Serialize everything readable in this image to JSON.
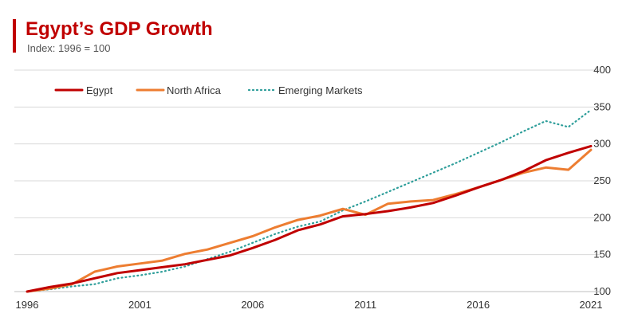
{
  "chart_data": {
    "type": "line",
    "title": "Egypt’s GDP Growth",
    "subtitle": "Index: 1996 = 100",
    "xlabel": "",
    "ylabel": "",
    "x": [
      1996,
      1997,
      1998,
      1999,
      2000,
      2001,
      2002,
      2003,
      2004,
      2005,
      2006,
      2007,
      2008,
      2009,
      2010,
      2011,
      2012,
      2013,
      2014,
      2015,
      2016,
      2017,
      2018,
      2019,
      2020,
      2021
    ],
    "xlim": [
      1996,
      2021
    ],
    "x_ticks": [
      1996,
      2001,
      2006,
      2011,
      2016,
      2021
    ],
    "ylim": [
      100,
      400
    ],
    "y_ticks": [
      100,
      150,
      200,
      250,
      300,
      350,
      400
    ],
    "y_axis_position": "right",
    "grid": "horizontal",
    "legend_position": "top-left",
    "series": [
      {
        "name": "Egypt",
        "color": "#c00000",
        "style": "solid",
        "values": [
          100,
          106,
          111,
          118,
          125,
          129,
          133,
          137,
          143,
          149,
          159,
          170,
          183,
          191,
          202,
          205,
          209,
          214,
          220,
          230,
          241,
          251,
          263,
          278,
          288,
          297
        ]
      },
      {
        "name": "North Africa",
        "color": "#ed7d31",
        "style": "solid",
        "values": [
          100,
          104,
          110,
          127,
          134,
          138,
          142,
          151,
          157,
          166,
          175,
          187,
          197,
          203,
          212,
          204,
          219,
          222,
          224,
          232,
          241,
          251,
          261,
          268,
          265,
          292
        ]
      },
      {
        "name": "Emerging Markets",
        "color": "#2e9e9a",
        "style": "dotted",
        "values": [
          100,
          103,
          107,
          110,
          118,
          122,
          127,
          134,
          144,
          154,
          166,
          178,
          188,
          195,
          210,
          222,
          235,
          248,
          261,
          274,
          288,
          302,
          317,
          331,
          323,
          346
        ]
      }
    ]
  },
  "colors": {
    "accent": "#c00000",
    "grid": "#d9d9d9",
    "axis": "#bfbfbf"
  }
}
